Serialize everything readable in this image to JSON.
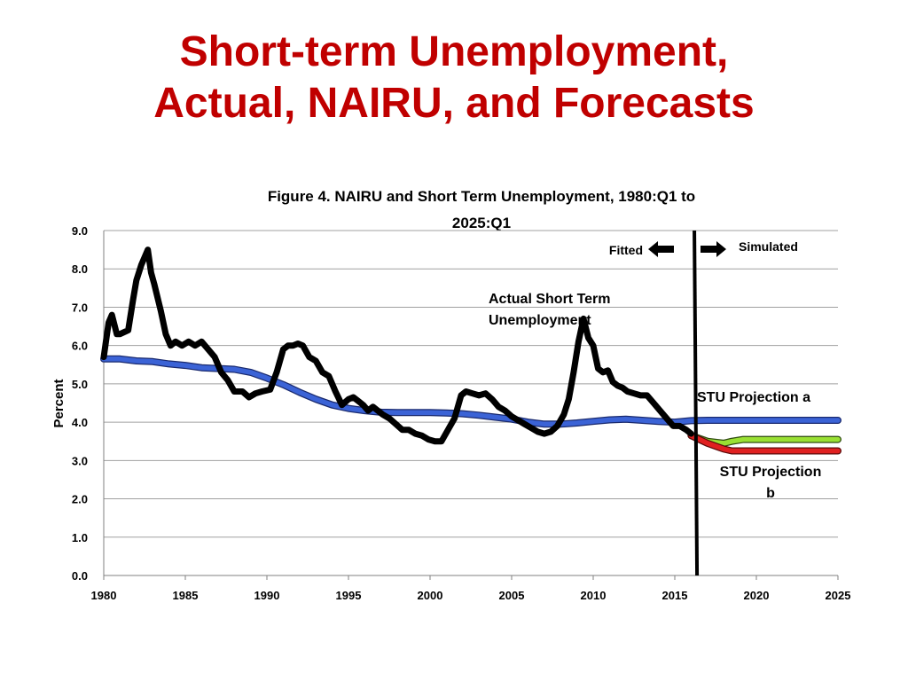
{
  "slide": {
    "title_line1": "Short-term Unemployment,",
    "title_line2": "Actual, NAIRU, and Forecasts"
  },
  "colors": {
    "title": "#c00000",
    "actual": "#000000",
    "nairu": "#3b63d6",
    "projection_a": "#99e033",
    "projection_b": "#e02020",
    "gridline": "#a0a0a0"
  },
  "chart_data": {
    "type": "line",
    "title_line1": "Figure 4. NAIRU and Short Term Unemployment, 1980:Q1 to",
    "title_line2": "2025:Q1",
    "xlabel": "",
    "ylabel": "Percent",
    "xlim": [
      1980,
      2025
    ],
    "ylim": [
      0,
      9
    ],
    "x_ticks": [
      "1980",
      "1985",
      "1990",
      "1995",
      "2000",
      "2005",
      "2010",
      "2015",
      "2020",
      "2025"
    ],
    "y_ticks": [
      "0.0",
      "1.0",
      "2.0",
      "3.0",
      "4.0",
      "5.0",
      "6.0",
      "7.0",
      "8.0",
      "9.0"
    ],
    "grid": true,
    "divider_year": 2016.2,
    "annotations": {
      "fitted": "Fitted",
      "simulated": "Simulated",
      "actual_line1": "Actual Short Term",
      "actual_line2": "Unemployment",
      "proj_a": "STU Projection a",
      "proj_b_line1": "STU Projection",
      "proj_b_line2": "b"
    },
    "series": [
      {
        "name": "Actual Short Term Unemployment",
        "x": [
          1980,
          1980.3,
          1980.5,
          1980.8,
          1981,
          1981.5,
          1981.8,
          1982,
          1982.3,
          1982.7,
          1982.9,
          1983.1,
          1983.5,
          1983.8,
          1984.1,
          1984.4,
          1984.8,
          1985.2,
          1985.6,
          1986,
          1986.4,
          1986.8,
          1987.2,
          1987.6,
          1988,
          1988.5,
          1988.9,
          1989.3,
          1989.7,
          1990.2,
          1990.6,
          1991,
          1991.3,
          1991.6,
          1991.9,
          1992.2,
          1992.6,
          1993,
          1993.4,
          1993.8,
          1994.2,
          1994.6,
          1995,
          1995.3,
          1995.6,
          1995.9,
          1996.2,
          1996.5,
          1996.8,
          1997.1,
          1997.5,
          1997.9,
          1998.3,
          1998.7,
          1999.1,
          1999.5,
          1999.9,
          2000.3,
          2000.7,
          2001.1,
          2001.5,
          2001.9,
          2002.2,
          2002.6,
          2003,
          2003.4,
          2003.8,
          2004.2,
          2004.6,
          2005,
          2005.4,
          2005.8,
          2006.2,
          2006.6,
          2007,
          2007.4,
          2007.8,
          2008.2,
          2008.5,
          2008.8,
          2009.1,
          2009.4,
          2009.7,
          2010,
          2010.3,
          2010.6,
          2010.9,
          2011.2,
          2011.5,
          2011.8,
          2012.1,
          2012.5,
          2012.9,
          2013.3,
          2013.7,
          2014.1,
          2014.5,
          2014.9,
          2015.3,
          2015.7,
          2016.0
        ],
        "values": [
          5.7,
          6.6,
          6.8,
          6.3,
          6.3,
          6.4,
          7.2,
          7.7,
          8.1,
          8.5,
          7.9,
          7.6,
          6.9,
          6.3,
          6.0,
          6.1,
          6.0,
          6.1,
          6.0,
          6.1,
          5.9,
          5.7,
          5.3,
          5.1,
          4.8,
          4.8,
          4.65,
          4.75,
          4.8,
          4.85,
          5.3,
          5.9,
          6.0,
          6.0,
          6.05,
          6.0,
          5.7,
          5.6,
          5.3,
          5.2,
          4.8,
          4.45,
          4.6,
          4.65,
          4.55,
          4.45,
          4.3,
          4.4,
          4.3,
          4.2,
          4.1,
          3.95,
          3.8,
          3.8,
          3.7,
          3.65,
          3.55,
          3.5,
          3.5,
          3.8,
          4.1,
          4.7,
          4.8,
          4.75,
          4.7,
          4.75,
          4.6,
          4.4,
          4.3,
          4.15,
          4.05,
          3.95,
          3.85,
          3.75,
          3.7,
          3.75,
          3.9,
          4.2,
          4.6,
          5.3,
          6.1,
          6.7,
          6.2,
          6.0,
          5.4,
          5.3,
          5.35,
          5.05,
          4.95,
          4.9,
          4.8,
          4.75,
          4.7,
          4.7,
          4.5,
          4.3,
          4.1,
          3.9,
          3.9,
          3.8,
          3.7
        ]
      },
      {
        "name": "NAIRU",
        "x": [
          1980,
          1981,
          1982,
          1983,
          1984,
          1985,
          1986,
          1987,
          1988,
          1989,
          1990,
          1991,
          1992,
          1993,
          1994,
          1995,
          1996,
          1997,
          1998,
          1999,
          2000,
          2001,
          2002,
          2003,
          2004,
          2005,
          2006,
          2007,
          2008,
          2009,
          2010,
          2011,
          2012,
          2013,
          2014,
          2015,
          2016,
          2017,
          2018,
          2020,
          2022,
          2025
        ],
        "values": [
          5.65,
          5.65,
          5.6,
          5.58,
          5.52,
          5.48,
          5.42,
          5.4,
          5.38,
          5.3,
          5.15,
          4.98,
          4.78,
          4.6,
          4.45,
          4.36,
          4.3,
          4.26,
          4.25,
          4.25,
          4.25,
          4.24,
          4.22,
          4.18,
          4.13,
          4.08,
          4.0,
          3.95,
          3.95,
          3.98,
          4.02,
          4.06,
          4.08,
          4.05,
          4.02,
          4.0,
          4.04,
          4.05,
          4.05,
          4.05,
          4.05,
          4.05
        ]
      },
      {
        "name": "STU Projection a",
        "x": [
          2016.0,
          2017.0,
          2018.0,
          2018.5,
          2019.2,
          2020,
          2022,
          2025
        ],
        "values": [
          3.65,
          3.5,
          3.45,
          3.5,
          3.55,
          3.55,
          3.55,
          3.55
        ]
      },
      {
        "name": "STU Projection b",
        "x": [
          2016.0,
          2017.0,
          2018.0,
          2018.5,
          2019.2,
          2020,
          2022,
          2025
        ],
        "values": [
          3.65,
          3.45,
          3.3,
          3.25,
          3.25,
          3.25,
          3.25,
          3.25
        ]
      }
    ]
  }
}
